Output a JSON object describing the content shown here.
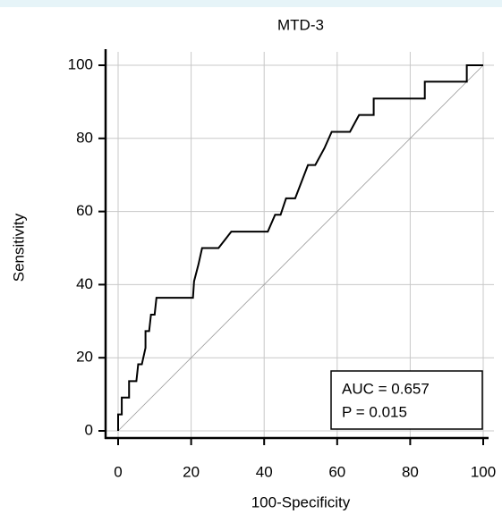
{
  "chart_data": {
    "type": "line",
    "title": "MTD-3",
    "x_label": "100-Specificity",
    "y_label": "Sensitivity",
    "series": [
      {
        "color": "#000000",
        "x": [
          0,
          0,
          1,
          1,
          3,
          3,
          5,
          5.5,
          6.5,
          7.5,
          7.5,
          8.5,
          9,
          10,
          10.5,
          20.5,
          20.8,
          22,
          23,
          27.5,
          31,
          41,
          43,
          44.5,
          46,
          48.5,
          52,
          54,
          56.5,
          58.5,
          63.5,
          66,
          70,
          70,
          84,
          84,
          95.5,
          95.5,
          100
        ],
        "values": [
          0,
          4.5,
          4.5,
          9.1,
          9.1,
          13.6,
          13.6,
          18.2,
          18.2,
          22.7,
          27.3,
          27.3,
          31.8,
          31.8,
          36.4,
          36.4,
          40.9,
          45.5,
          50,
          50,
          54.5,
          54.5,
          59.1,
          59.1,
          63.6,
          63.6,
          72.7,
          72.7,
          77.3,
          81.8,
          81.8,
          86.4,
          86.4,
          90.9,
          90.9,
          95.5,
          95.5,
          100,
          100
        ]
      }
    ],
    "xlim": [
      0,
      100
    ],
    "ylim": [
      0,
      100
    ],
    "xticks": [
      0,
      20,
      40,
      60,
      80,
      100
    ],
    "yticks": [
      0,
      20,
      40,
      60,
      80,
      100
    ],
    "grid": true,
    "reference_line": true,
    "annotations": [
      "AUC = 0.657",
      "P = 0.015"
    ]
  }
}
